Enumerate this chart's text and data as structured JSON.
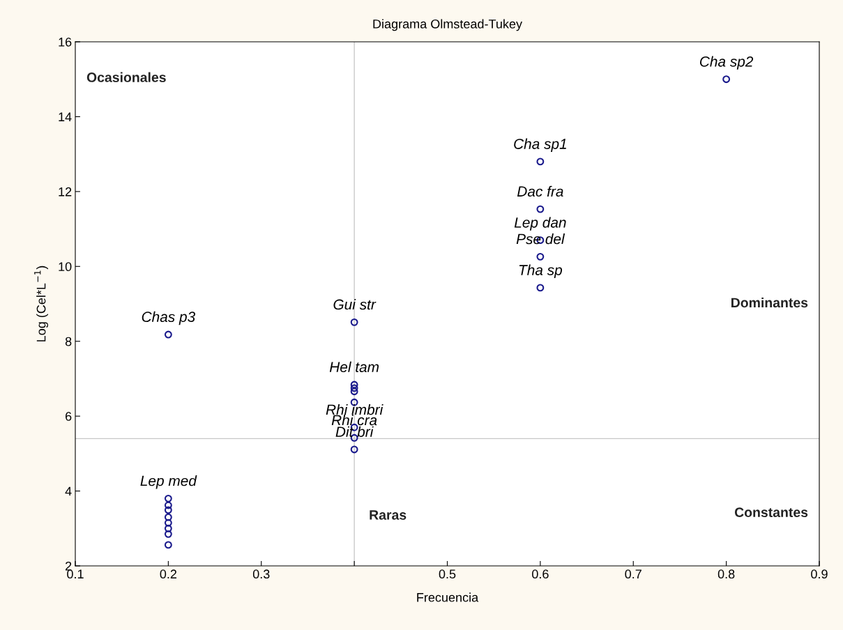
{
  "chart_data": {
    "type": "scatter",
    "title": "Diagrama Olmstead-Tukey",
    "xlabel": "Frecuencia",
    "ylabel": "Log (Cel*L$^{−1}$)",
    "x": [
      0.8,
      0.6,
      0.6,
      0.6,
      0.6,
      0.6,
      0.4,
      0.2,
      0.4,
      0.4,
      0.4,
      0.4,
      0.4,
      0.4,
      0.4,
      0.2,
      0.2,
      0.2,
      0.2,
      0.2,
      0.2,
      0.2,
      0.2
    ],
    "series": [
      {
        "color": "#1a1a8c",
        "values": [
          15.0,
          12.8,
          11.53,
          10.7,
          10.26,
          9.43,
          8.51,
          8.18,
          6.84,
          6.75,
          6.66,
          6.37,
          5.7,
          5.42,
          5.11,
          3.8,
          3.62,
          3.49,
          3.3,
          3.15,
          3.0,
          2.85,
          2.56
        ]
      }
    ],
    "marker": "circle",
    "grid": false,
    "xlim": [
      0.1,
      0.9
    ],
    "xticks": [
      0.1,
      0.2,
      0.3,
      {
        "value": 0.4,
        "label": null
      },
      0.5,
      0.6,
      0.7,
      0.8,
      0.9
    ],
    "ylim": [
      2,
      16
    ],
    "yticks": [
      2,
      4,
      6,
      8,
      10,
      12,
      14,
      16
    ],
    "ref_lines": [
      {
        "axis": "x",
        "value": 0.4,
        "color": "#c8c8c8"
      },
      {
        "axis": "y",
        "value": 5.4,
        "color": "#c8c8c8"
      }
    ],
    "annotations": [
      {
        "text": "Cha sp2",
        "x": 0.8,
        "y": 15.0
      },
      {
        "text": "Cha sp1",
        "x": 0.6,
        "y": 12.8
      },
      {
        "text": "Dac fra",
        "x": 0.6,
        "y": 11.53
      },
      {
        "text": "Lep dan",
        "x": 0.6,
        "y": 10.7
      },
      {
        "text": "Pse del",
        "x": 0.6,
        "y": 10.26
      },
      {
        "text": "Tha sp",
        "x": 0.6,
        "y": 9.43
      },
      {
        "text": "Gui str",
        "x": 0.4,
        "y": 8.51
      },
      {
        "text": "Chas p3",
        "x": 0.2,
        "y": 8.18
      },
      {
        "text": "Hel tam",
        "x": 0.4,
        "y": 6.84
      },
      {
        "text": "Rhi imbri",
        "x": 0.4,
        "y": 5.7
      },
      {
        "text": "Rhi cra",
        "x": 0.4,
        "y": 5.42
      },
      {
        "text": "Dit bri",
        "x": 0.4,
        "y": 5.11
      },
      {
        "text": "Lep med",
        "x": 0.2,
        "y": 3.8
      },
      "Ocasionales",
      "Dominantes",
      "Constantes",
      "Raras"
    ]
  }
}
